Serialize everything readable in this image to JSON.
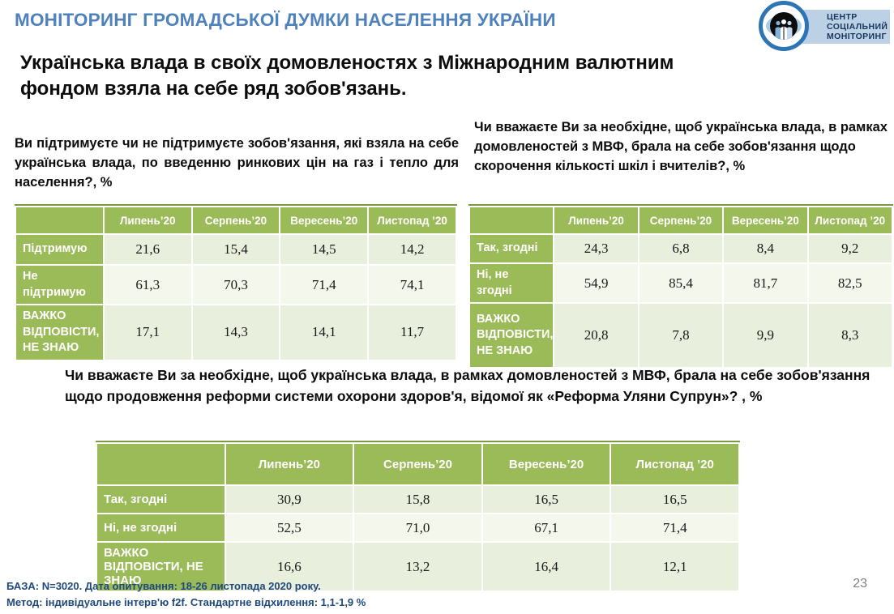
{
  "header": {
    "title": "МОНІТОРИНГ ГРОМАДСЬКОЇ ДУМКИ НАСЕЛЕННЯ УКРАЇНИ"
  },
  "logo": {
    "lines": [
      "ЦЕНТР",
      "СОЦІАЛЬНИЙ",
      "МОНІТОРИНГ"
    ]
  },
  "subtitle": "Українська влада в своїх домовленостях з Міжнародним валютним фондом взяла на себе ряд зобов'язань.",
  "questions": {
    "q1": "Ви підтримуєте чи не підтримуєте зобов'язання, які взяла на себе українська влада, по введенню ринкових цін на газ і тепло для населення?, %",
    "q2": "Чи вважаєте Ви за необхідне, щоб українська влада, в рамках домовленостей з МВФ, брала на себе зобов'язання щодо скорочення кількості шкіл і вчителів?, %",
    "q3": "Чи вважаєте Ви за необхідне, щоб українська влада, в рамках домовленостей з МВФ, брала на себе зобов'язання щодо продовження реформи системи охорони здоров'я, відомої як «Реформа Уляни Супрун»? , %"
  },
  "chart_data": [
    {
      "type": "table",
      "title": "Ви підтримуєте чи не підтримуєте зобов'язання, які взяла на себе українська влада, по введенню ринкових цін на газ і тепло для населення?, %",
      "columns": [
        "",
        "Липень’20",
        "Серпень’20",
        "Вересень’20",
        "Листопад ’20"
      ],
      "rows": [
        {
          "label": "Підтримую",
          "values": [
            21.6,
            15.4,
            14.5,
            14.2
          ]
        },
        {
          "label": "Не підтримую",
          "values": [
            61.3,
            70.3,
            71.4,
            74.1
          ]
        },
        {
          "label": "ВАЖКО ВІДПОВІСТИ, НЕ ЗНАЮ",
          "values": [
            17.1,
            14.3,
            14.1,
            11.7
          ]
        }
      ]
    },
    {
      "type": "table",
      "title": "Чи вважаєте Ви за необхідне, щоб українська влада, в рамках домовленостей з МВФ, брала на себе зобов'язання щодо скорочення кількості шкіл і вчителів?, %",
      "columns": [
        "",
        "Липень’20",
        "Серпень’20",
        "Вересень’20",
        "Листопад ’20"
      ],
      "rows": [
        {
          "label": "Так, згодні",
          "values": [
            24.3,
            6.8,
            8.4,
            9.2
          ]
        },
        {
          "label": "Ні, не згодні",
          "values": [
            54.9,
            85.4,
            81.7,
            82.5
          ]
        },
        {
          "label": "ВАЖКО ВІДПОВІСТИ, НЕ ЗНАЮ",
          "values": [
            20.8,
            7.8,
            9.9,
            8.3
          ]
        }
      ]
    },
    {
      "type": "table",
      "title": "Чи вважаєте Ви за необхідне, щоб українська влада, в рамках домовленостей з МВФ, брала на себе зобов'язання щодо продовження реформи системи охорони здоров'я, відомої як «Реформа Уляни Супрун»? , %",
      "columns": [
        "",
        "Липень’20",
        "Серпень’20",
        "Вересень’20",
        "Листопад ’20"
      ],
      "rows": [
        {
          "label": "Так, згодні",
          "values": [
            30.9,
            15.8,
            16.5,
            16.5
          ]
        },
        {
          "label": "Ні, не згодні",
          "values": [
            52.5,
            71.0,
            67.1,
            71.4
          ]
        },
        {
          "label": "ВАЖКО ВІДПОВІСТИ, НЕ ЗНАЮ",
          "values": [
            16.6,
            13.2,
            16.4,
            12.1
          ]
        }
      ]
    }
  ],
  "footer": {
    "line1": "БАЗА: N=3020. Дата опитування: 18-26 листопада 2020 року.",
    "line2": "Метод: індивідуальне інтерв'ю f2f. Стандартне відхилення: 1,1-1,9 %",
    "page_number": "23"
  },
  "colors": {
    "accent_green": "#9BBB59",
    "band_light": "#E8EFDC",
    "band_lighter": "#F3F7EC",
    "title_blue": "#4F81BD",
    "footer_navy": "#1F497D",
    "logo_ring_blue": "#2E75B6",
    "logo_banner_blue": "#BCD1E6"
  }
}
